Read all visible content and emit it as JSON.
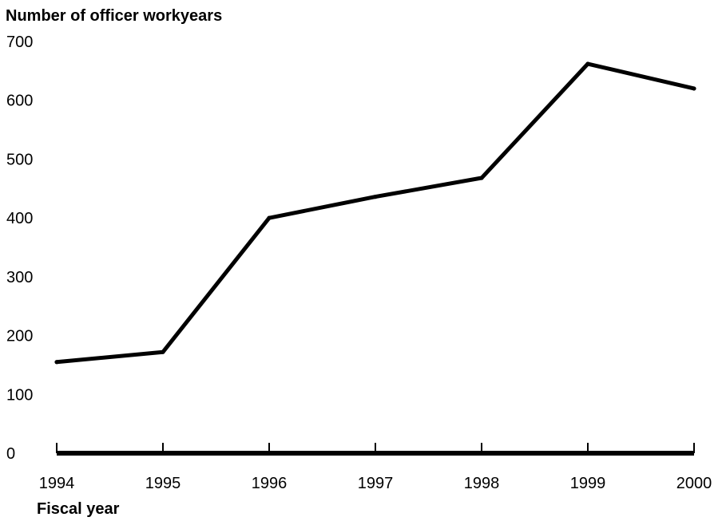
{
  "chart_data": {
    "type": "line",
    "title": "",
    "ylabel": "Number of officer workyears",
    "xlabel": "Fiscal year",
    "categories": [
      "1994",
      "1995",
      "1996",
      "1997",
      "1998",
      "1999",
      "2000"
    ],
    "x_tick_labels": [
      "1994",
      "1995",
      "1996",
      "1997",
      "1998",
      "1999",
      "2000"
    ],
    "y_tick_labels": [
      "0",
      "100",
      "200",
      "300",
      "400",
      "500",
      "600",
      "700"
    ],
    "ylim": [
      0,
      700
    ],
    "grid": false,
    "series": [
      {
        "values": [
          155,
          172,
          400,
          436,
          468,
          662,
          620
        ]
      }
    ],
    "colors": {
      "line": "#000000",
      "axis": "#000000"
    }
  }
}
